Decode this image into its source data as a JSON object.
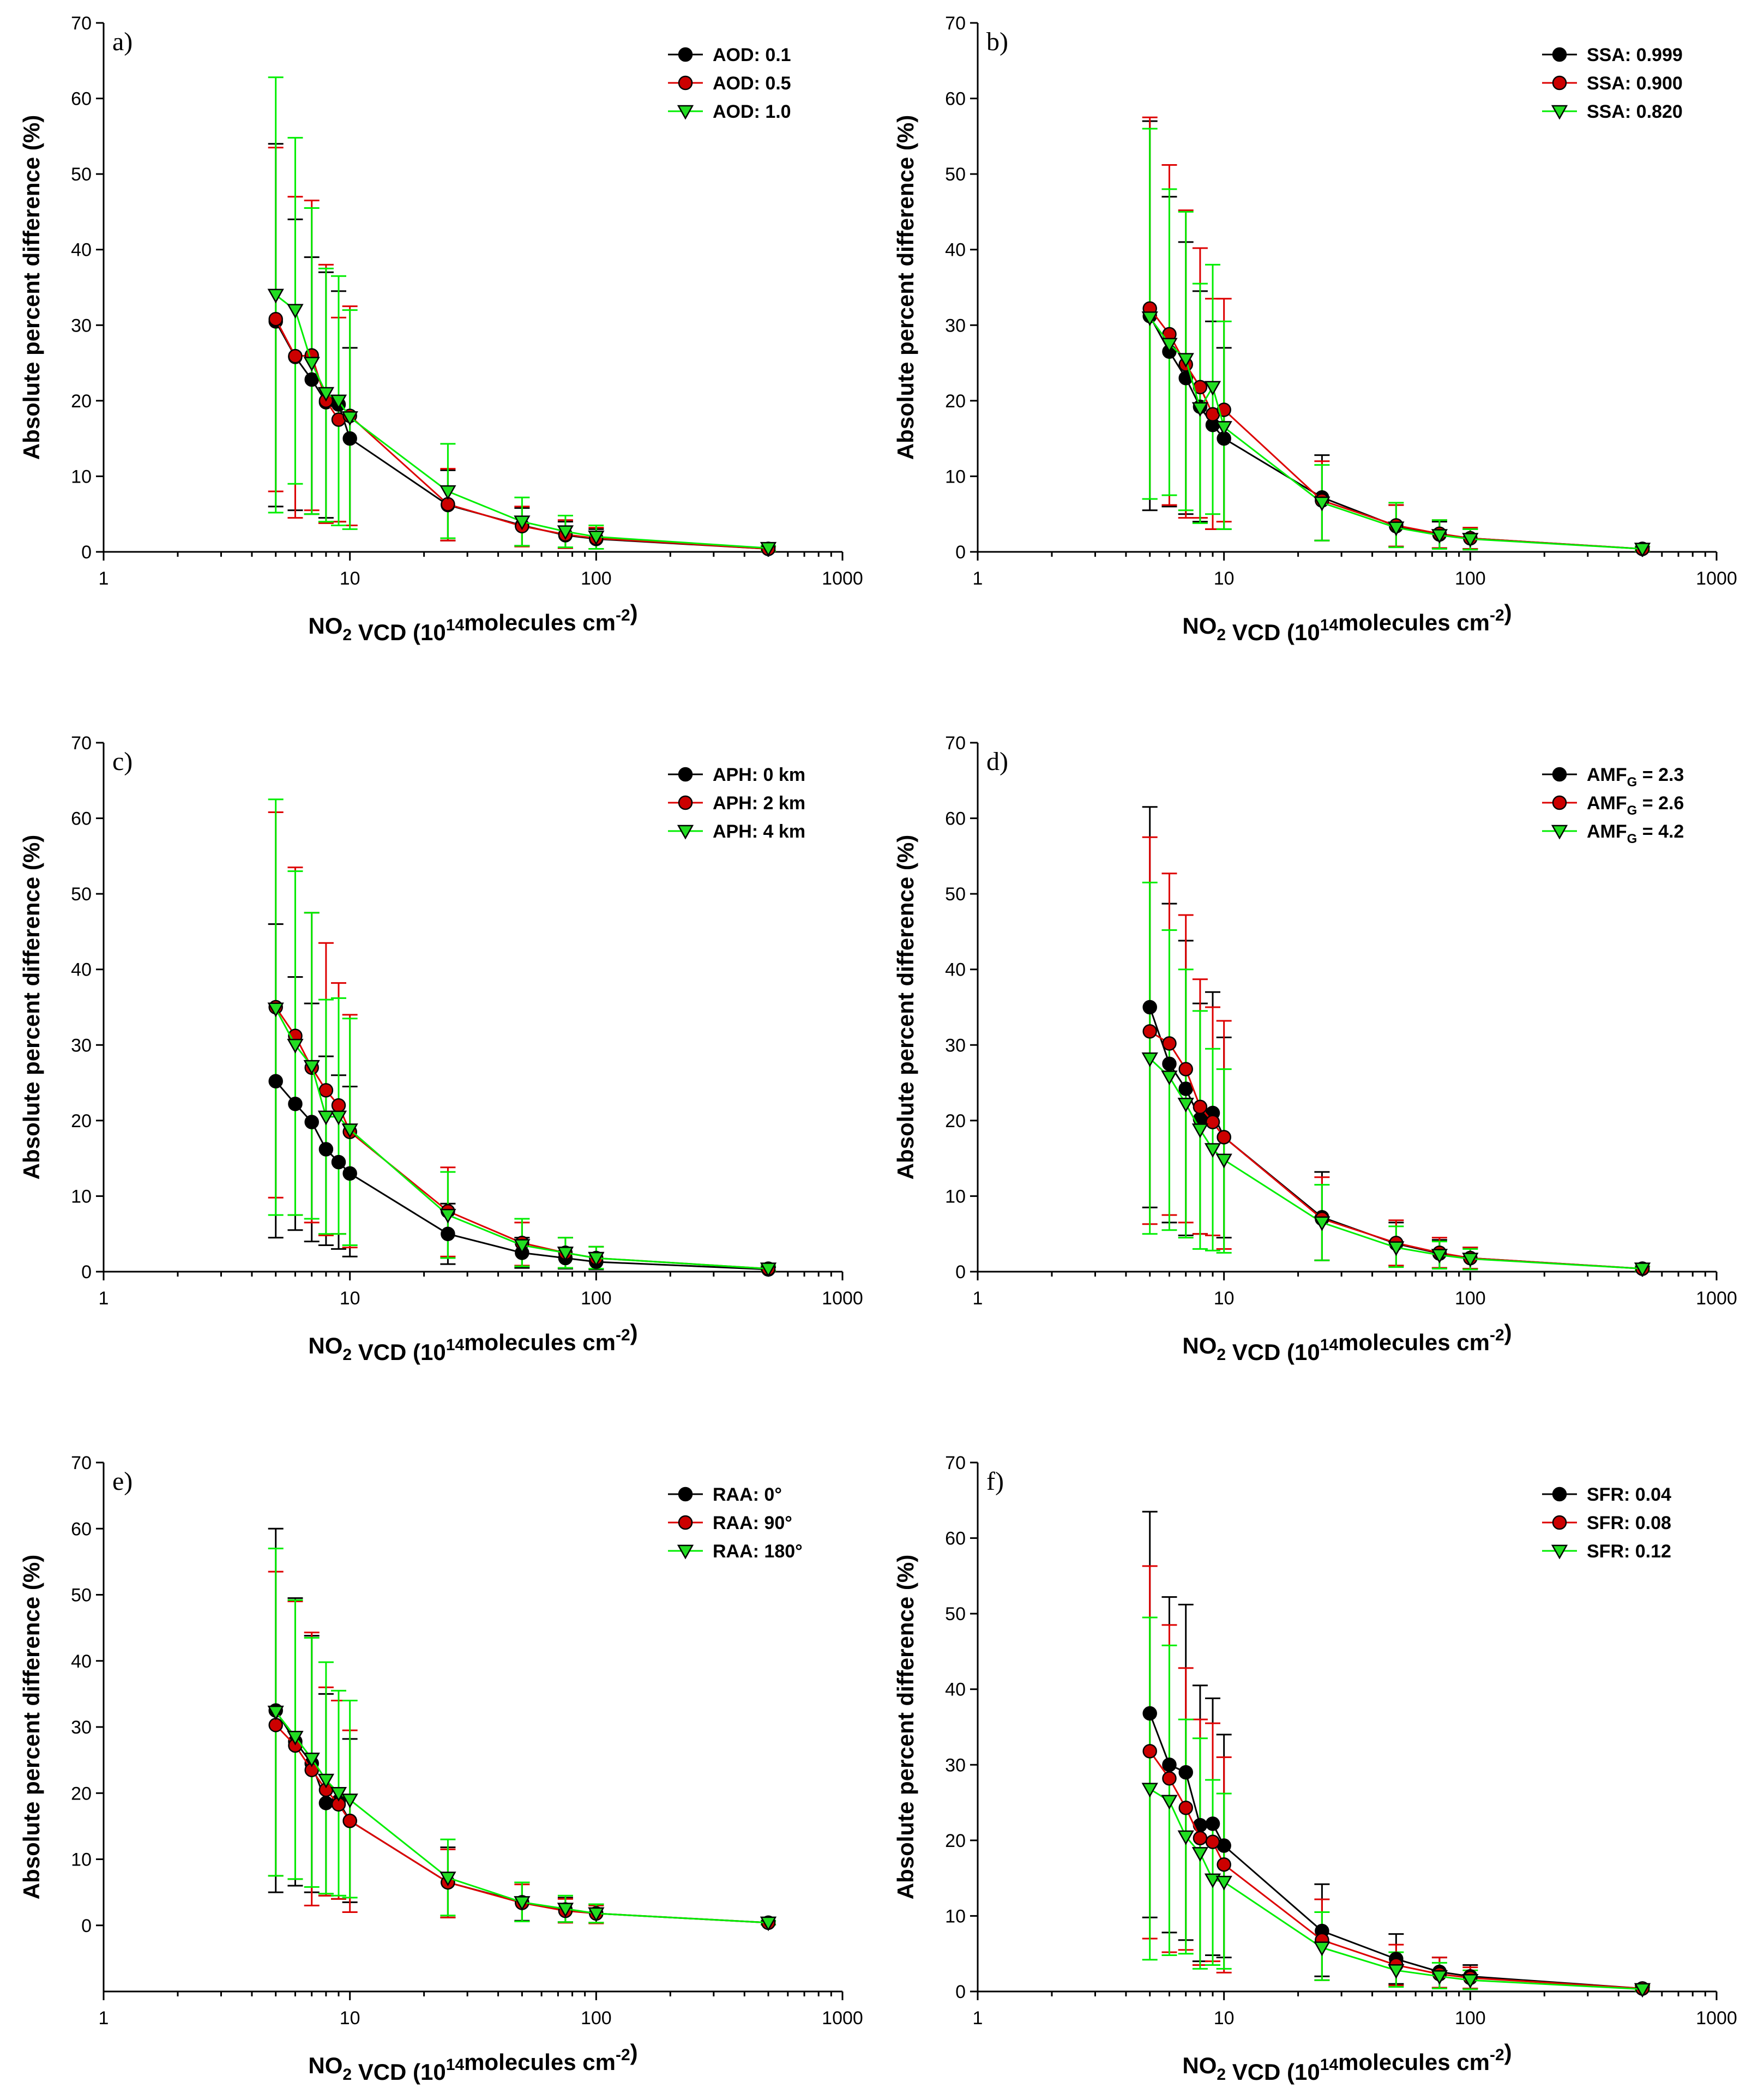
{
  "figure": {
    "x_categories_note": "NO2 VCD in 10^14 molecules cm^-2",
    "colors": {
      "series1": "#000000",
      "series2": "#dd0000",
      "series3": "#00ee00",
      "fill1": "#000000",
      "fill2": "#cc0000",
      "fill3": "#22dd22"
    }
  },
  "chart_data": [
    {
      "type": "line",
      "panel": "a)",
      "xlabel": "NO2 VCD (10^14 molecules cm^-2)",
      "ylabel": "Absolute percent difference (%)",
      "xscale": "log",
      "xlim": [
        1,
        1000
      ],
      "ylim": [
        0,
        70
      ],
      "yticks": [
        0,
        10,
        20,
        30,
        40,
        50,
        60,
        70
      ],
      "x": [
        5,
        6,
        7,
        8,
        9,
        10,
        25,
        50,
        75,
        100,
        500
      ],
      "series": [
        {
          "name": "AOD: 0.1",
          "values": [
            30.5,
            25.8,
            22.8,
            19.8,
            19.5,
            15.0,
            6.2,
            3.5,
            2.2,
            1.7,
            0.4
          ],
          "err_low": [
            6.0,
            5.5,
            5.0,
            4.5,
            4.0,
            3.5,
            1.5,
            0.8,
            0.5,
            0.4,
            0.1
          ],
          "err_high": [
            54.0,
            44.0,
            39.0,
            37.0,
            34.5,
            27.0,
            10.8,
            5.8,
            4.0,
            3.0,
            0.7
          ]
        },
        {
          "name": "AOD: 0.5",
          "values": [
            30.8,
            25.9,
            26.0,
            20.0,
            17.5,
            18.0,
            6.3,
            3.4,
            2.3,
            1.8,
            0.4
          ],
          "err_low": [
            8.0,
            4.5,
            5.5,
            3.8,
            4.0,
            3.5,
            1.5,
            0.7,
            0.5,
            0.4,
            0.1
          ],
          "err_high": [
            53.5,
            47.0,
            46.5,
            38.0,
            31.0,
            32.5,
            11.0,
            6.0,
            4.2,
            3.2,
            0.7
          ]
        },
        {
          "name": "AOD: 1.0",
          "values": [
            34.0,
            32.0,
            25.0,
            21.0,
            20.0,
            17.8,
            8.0,
            4.0,
            2.7,
            2.0,
            0.5
          ],
          "err_low": [
            5.2,
            9.0,
            5.0,
            4.0,
            3.5,
            3.0,
            1.8,
            0.8,
            0.6,
            0.4,
            0.1
          ],
          "err_high": [
            62.8,
            54.8,
            45.5,
            37.5,
            36.5,
            32.0,
            14.3,
            7.2,
            4.8,
            3.5,
            0.8
          ]
        }
      ]
    },
    {
      "type": "line",
      "panel": "b)",
      "xlabel": "NO2 VCD (10^14 molecules cm^-2)",
      "ylabel": "Absolute percent difference (%)",
      "xscale": "log",
      "xlim": [
        1,
        1000
      ],
      "ylim": [
        0,
        70
      ],
      "yticks": [
        0,
        10,
        20,
        30,
        40,
        50,
        60,
        70
      ],
      "x": [
        5,
        6,
        7,
        8,
        9,
        10,
        25,
        50,
        75,
        100,
        500
      ],
      "series": [
        {
          "name": "SSA: 0.999",
          "values": [
            31.2,
            26.5,
            23.0,
            19.2,
            16.8,
            15.0,
            7.2,
            3.4,
            2.3,
            1.8,
            0.4
          ],
          "err_low": [
            5.5,
            6.0,
            5.0,
            4.0,
            3.0,
            3.0,
            1.5,
            0.7,
            0.5,
            0.4,
            0.1
          ],
          "err_high": [
            57.0,
            47.0,
            41.0,
            34.5,
            30.5,
            27.0,
            12.8,
            6.2,
            4.0,
            3.0,
            0.7
          ]
        },
        {
          "name": "SSA: 0.900",
          "values": [
            32.2,
            28.8,
            24.8,
            21.8,
            18.2,
            18.8,
            6.8,
            3.5,
            2.4,
            1.8,
            0.4
          ],
          "err_low": [
            7.0,
            6.2,
            4.5,
            4.5,
            3.0,
            4.0,
            1.5,
            0.7,
            0.5,
            0.4,
            0.1
          ],
          "err_high": [
            57.5,
            51.2,
            45.2,
            40.2,
            33.5,
            33.5,
            12.0,
            6.2,
            4.2,
            3.2,
            0.7
          ]
        },
        {
          "name": "SSA: 0.820",
          "values": [
            31.0,
            27.5,
            25.5,
            19.0,
            21.8,
            16.5,
            6.5,
            3.2,
            2.2,
            1.7,
            0.4
          ],
          "err_low": [
            7.0,
            7.5,
            5.5,
            3.8,
            5.0,
            3.0,
            1.5,
            0.6,
            0.4,
            0.3,
            0.1
          ],
          "err_high": [
            56.0,
            48.0,
            45.0,
            35.5,
            38.0,
            30.5,
            11.5,
            6.5,
            4.2,
            3.0,
            0.7
          ]
        }
      ]
    },
    {
      "type": "line",
      "panel": "c)",
      "xlabel": "NO2 VCD (10^14 molecules cm^-2)",
      "ylabel": "Absolute percent difference (%)",
      "xscale": "log",
      "xlim": [
        1,
        1000
      ],
      "ylim": [
        0,
        70
      ],
      "yticks": [
        0,
        10,
        20,
        30,
        40,
        50,
        60,
        70
      ],
      "x": [
        5,
        6,
        7,
        8,
        9,
        10,
        25,
        50,
        75,
        100,
        500
      ],
      "series": [
        {
          "name": "APH: 0 km",
          "values": [
            25.2,
            22.2,
            19.8,
            16.2,
            14.5,
            13.0,
            5.0,
            2.5,
            1.8,
            1.3,
            0.3
          ],
          "err_low": [
            4.5,
            5.5,
            4.0,
            3.5,
            3.0,
            2.0,
            1.0,
            0.5,
            0.4,
            0.3,
            0.1
          ],
          "err_high": [
            46.0,
            39.0,
            35.5,
            28.5,
            26.0,
            24.5,
            9.0,
            4.5,
            3.2,
            2.5,
            0.6
          ]
        },
        {
          "name": "APH: 2 km",
          "values": [
            35.0,
            31.2,
            27.0,
            24.0,
            22.0,
            18.5,
            8.0,
            3.8,
            2.5,
            1.8,
            0.4
          ],
          "err_low": [
            9.8,
            7.5,
            6.5,
            4.8,
            5.0,
            3.2,
            2.0,
            0.8,
            0.5,
            0.4,
            0.1
          ],
          "err_high": [
            60.8,
            53.5,
            47.5,
            43.5,
            38.2,
            34.0,
            13.8,
            6.5,
            4.5,
            3.3,
            0.8
          ]
        },
        {
          "name": "APH: 4 km",
          "values": [
            34.8,
            30.0,
            27.2,
            20.5,
            20.5,
            18.8,
            7.5,
            3.5,
            2.5,
            1.8,
            0.4
          ],
          "err_low": [
            7.5,
            7.5,
            7.0,
            5.0,
            5.0,
            3.5,
            1.8,
            0.7,
            0.5,
            0.4,
            0.1
          ],
          "err_high": [
            62.5,
            53.0,
            47.5,
            36.0,
            36.2,
            33.5,
            13.2,
            7.0,
            4.5,
            3.3,
            0.8
          ]
        }
      ]
    },
    {
      "type": "line",
      "panel": "d)",
      "xlabel": "NO2 VCD (10^14 molecules cm^-2)",
      "ylabel": "Absolute percent difference (%)",
      "xscale": "log",
      "xlim": [
        1,
        1000
      ],
      "ylim": [
        0,
        70
      ],
      "yticks": [
        0,
        10,
        20,
        30,
        40,
        50,
        60,
        70
      ],
      "x": [
        5,
        6,
        7,
        8,
        9,
        10,
        25,
        50,
        75,
        100,
        500
      ],
      "series": [
        {
          "name": "AMF_G = 2.3",
          "values": [
            35.0,
            27.5,
            24.2,
            20.2,
            21.0,
            17.8,
            7.2,
            3.7,
            2.4,
            1.8,
            0.4
          ],
          "err_low": [
            8.5,
            6.5,
            4.8,
            5.0,
            4.8,
            4.5,
            1.5,
            0.8,
            0.5,
            0.4,
            0.1
          ],
          "err_high": [
            61.5,
            48.7,
            43.8,
            35.5,
            37.0,
            31.0,
            13.2,
            6.5,
            4.2,
            3.2,
            0.7
          ]
        },
        {
          "name": "AMF_G = 2.6",
          "values": [
            31.8,
            30.2,
            26.8,
            21.8,
            19.8,
            17.8,
            7.0,
            3.8,
            2.5,
            1.8,
            0.4
          ],
          "err_low": [
            6.3,
            7.5,
            6.5,
            5.0,
            4.8,
            3.0,
            1.5,
            0.8,
            0.5,
            0.4,
            0.1
          ],
          "err_high": [
            57.5,
            52.7,
            47.2,
            38.7,
            35.0,
            33.2,
            12.5,
            6.8,
            4.5,
            3.2,
            0.7
          ]
        },
        {
          "name": "AMF_G = 4.2",
          "values": [
            28.2,
            25.8,
            22.2,
            18.8,
            16.2,
            14.8,
            6.5,
            3.2,
            2.2,
            1.7,
            0.4
          ],
          "err_low": [
            5.0,
            5.5,
            4.5,
            3.0,
            2.8,
            2.5,
            1.5,
            0.6,
            0.4,
            0.3,
            0.1
          ],
          "err_high": [
            51.5,
            45.2,
            40.0,
            34.5,
            29.5,
            26.8,
            11.5,
            6.0,
            4.0,
            3.0,
            0.7
          ]
        }
      ]
    },
    {
      "type": "line",
      "panel": "e)",
      "xlabel": "NO2 VCD (10^14 molecules cm^-2)",
      "ylabel": "Absolute percent difference (%)",
      "xscale": "log",
      "xlim": [
        1,
        1000
      ],
      "ylim": [
        -10,
        70
      ],
      "yticks": [
        0,
        10,
        20,
        30,
        40,
        50,
        60,
        70
      ],
      "x": [
        5,
        6,
        7,
        8,
        9,
        10,
        25,
        50,
        75,
        100,
        500
      ],
      "series": [
        {
          "name": "RAA: 0°",
          "values": [
            32.5,
            27.8,
            24.5,
            18.5,
            18.8,
            15.8,
            6.5,
            3.5,
            2.4,
            1.8,
            0.4
          ],
          "err_low": [
            5.0,
            6.0,
            5.0,
            4.5,
            4.0,
            3.5,
            1.2,
            0.7,
            0.5,
            0.4,
            0.1
          ],
          "err_high": [
            60.0,
            49.5,
            43.8,
            35.0,
            34.0,
            28.2,
            11.8,
            6.5,
            4.2,
            3.2,
            0.7
          ]
        },
        {
          "name": "RAA: 90°",
          "values": [
            30.3,
            27.2,
            23.5,
            20.5,
            18.3,
            15.8,
            6.5,
            3.4,
            2.2,
            1.8,
            0.4
          ],
          "err_low": [
            7.5,
            7.0,
            3.0,
            4.5,
            4.0,
            2.0,
            1.2,
            0.6,
            0.4,
            0.3,
            0.1
          ],
          "err_high": [
            53.5,
            49.0,
            44.3,
            36.0,
            34.0,
            29.5,
            11.5,
            6.2,
            4.0,
            3.0,
            0.7
          ]
        },
        {
          "name": "RAA: 180°",
          "values": [
            32.3,
            28.5,
            25.2,
            22.0,
            20.0,
            19.0,
            7.2,
            3.5,
            2.5,
            1.8,
            0.4
          ],
          "err_low": [
            7.5,
            7.0,
            5.8,
            4.8,
            4.5,
            4.2,
            1.5,
            0.6,
            0.5,
            0.4,
            0.1
          ],
          "err_high": [
            57.0,
            49.2,
            43.5,
            39.8,
            35.5,
            34.0,
            13.0,
            6.5,
            4.5,
            3.2,
            0.7
          ]
        }
      ]
    },
    {
      "type": "line",
      "panel": "f)",
      "xlabel": "NO2 VCD (10^14 molecules cm^-2)",
      "ylabel": "Absolute percent difference (%)",
      "xscale": "log",
      "xlim": [
        1,
        1000
      ],
      "ylim": [
        0,
        70
      ],
      "yticks": [
        0,
        10,
        20,
        30,
        40,
        50,
        60,
        70
      ],
      "x": [
        5,
        6,
        7,
        8,
        9,
        10,
        25,
        50,
        75,
        100,
        500
      ],
      "series": [
        {
          "name": "SFR: 0.04",
          "values": [
            36.8,
            30.0,
            29.0,
            22.0,
            22.2,
            19.3,
            8.0,
            4.3,
            2.6,
            2.0,
            0.4
          ],
          "err_low": [
            9.8,
            7.8,
            6.8,
            4.0,
            4.8,
            4.5,
            2.0,
            1.0,
            0.5,
            0.4,
            0.1
          ],
          "err_high": [
            63.5,
            52.2,
            51.2,
            40.5,
            38.8,
            34.0,
            14.2,
            7.6,
            4.5,
            3.5,
            0.8
          ]
        },
        {
          "name": "SFR: 0.08",
          "values": [
            31.8,
            28.2,
            24.3,
            20.3,
            19.8,
            16.8,
            6.8,
            3.5,
            2.3,
            1.8,
            0.4
          ],
          "err_low": [
            7.0,
            5.2,
            5.5,
            3.5,
            4.0,
            2.5,
            1.5,
            0.8,
            0.5,
            0.4,
            0.1
          ],
          "err_high": [
            56.3,
            48.5,
            42.8,
            36.0,
            35.5,
            31.0,
            12.2,
            6.2,
            4.5,
            3.2,
            0.7
          ]
        },
        {
          "name": "SFR: 0.12",
          "values": [
            26.8,
            25.2,
            20.5,
            18.3,
            14.8,
            14.5,
            5.8,
            2.8,
            2.0,
            1.5,
            0.3
          ],
          "err_low": [
            4.2,
            4.8,
            5.0,
            3.0,
            3.5,
            3.0,
            1.5,
            0.6,
            0.4,
            0.3,
            0.1
          ],
          "err_high": [
            49.5,
            45.8,
            36.0,
            33.5,
            28.0,
            26.2,
            10.5,
            5.2,
            3.8,
            2.8,
            0.6
          ]
        }
      ]
    }
  ],
  "labels": {
    "ytitle": "Absolute percent difference (%)",
    "xtitle_prefix": "NO",
    "xtitle_sub": "2",
    "xtitle_mid": " VCD (10",
    "xtitle_sup": "14",
    "xtitle_mid2": "molecules cm",
    "xtitle_sup2": "-2",
    "xtitle_end": ")",
    "xticks": [
      "1",
      "10",
      "100",
      "1000"
    ]
  }
}
